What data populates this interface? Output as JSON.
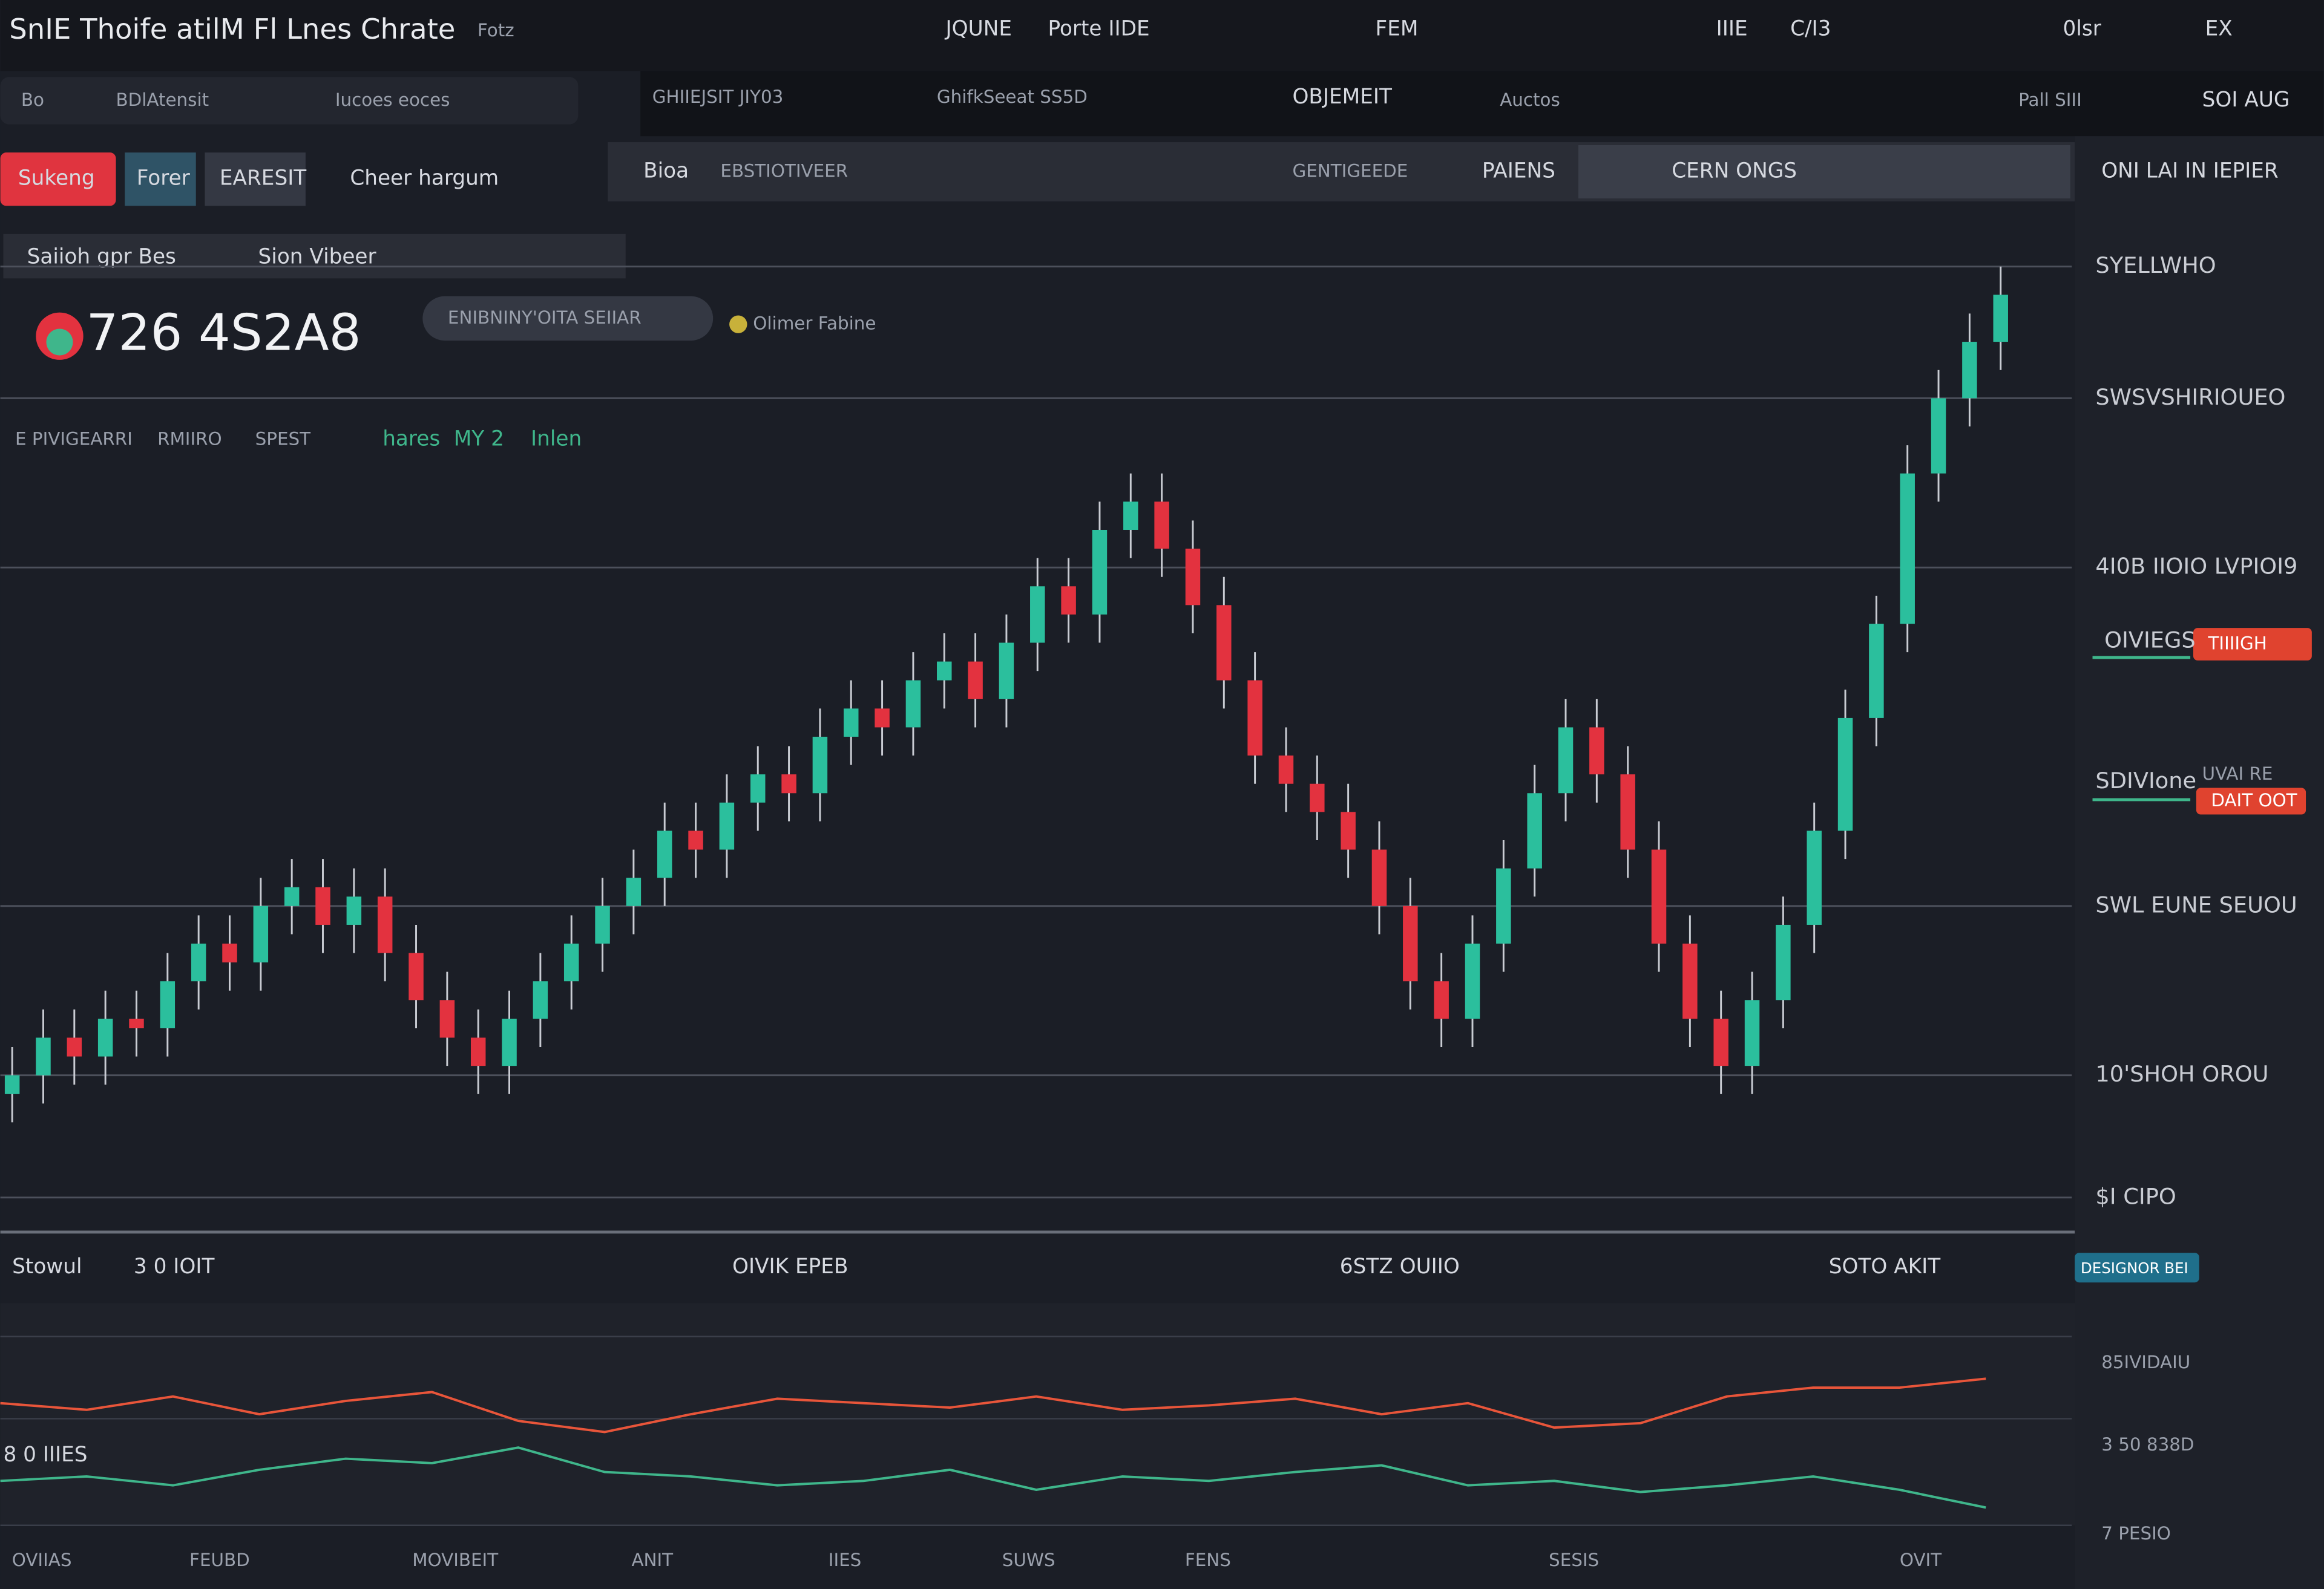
{
  "header": {
    "title": "SnIE Thoife atilM Fl Lnes Chrate",
    "title_suffix": "Fotz",
    "menu": [
      "JQUNE",
      "Porte IIDE",
      "FEM",
      "IIIE",
      "C/I3",
      "0lsr",
      "EX"
    ]
  },
  "toolbar": {
    "items": [
      "Bo",
      "BDlAtensit",
      "Iucoes eoces",
      "GHIIEJSIT JIY03",
      "GhifkSeeat SS5D",
      "OBJEMEIT",
      "Auctos",
      "Pall SIII",
      "SOI AUG"
    ]
  },
  "tabs": [
    "Sukeng",
    "Forer",
    "EARESIT",
    "Cheer hargum"
  ],
  "subtabs": [
    "Saiioh gpr Bes",
    "Sion Vibeer",
    "Bioa",
    "EBSTIOTIVEER",
    "GENTIGEEDE",
    "PAIENS",
    "CERN ONGS",
    "ONI LAI IN IEPIER"
  ],
  "quote": {
    "price": "726 4S2A8",
    "pill": "ENIBNINY'OITA SEIIAR",
    "status": "Olimer Fabine"
  },
  "legend": [
    "E PIVIGEARRI",
    "RMIIRO",
    "SPEST",
    "hares",
    "MY 2",
    "Inlen"
  ],
  "tags": [
    "OIVIEGS",
    "TIIIIGH",
    "SDIVIone",
    "UVAI RE",
    "DAIT OOT"
  ],
  "chart_data": {
    "type": "candlestick",
    "up_color": "#2bbf9d",
    "down_color": "#e3323f",
    "open": [
      12,
      14,
      18,
      16,
      20,
      19,
      24,
      28,
      26,
      32,
      34,
      30,
      33,
      27,
      22,
      18,
      15,
      20,
      24,
      28,
      32,
      35,
      40,
      38,
      43,
      46,
      44,
      50,
      53,
      51,
      56,
      58,
      54,
      60,
      66,
      63,
      72,
      75,
      70,
      64,
      56,
      48,
      45,
      42,
      38,
      32,
      24,
      20,
      28,
      36,
      44,
      51,
      46,
      38,
      28,
      20,
      15,
      22,
      30,
      40,
      52,
      62,
      78,
      86,
      92
    ],
    "high": [
      17,
      21,
      21,
      23,
      23,
      27,
      31,
      31,
      35,
      37,
      37,
      36,
      36,
      30,
      25,
      21,
      23,
      27,
      31,
      35,
      38,
      43,
      43,
      46,
      49,
      49,
      53,
      56,
      56,
      59,
      61,
      61,
      63,
      69,
      69,
      75,
      78,
      78,
      73,
      67,
      59,
      51,
      48,
      45,
      41,
      35,
      27,
      31,
      39,
      47,
      54,
      54,
      49,
      41,
      31,
      23,
      25,
      33,
      43,
      55,
      65,
      81,
      89,
      95,
      100
    ],
    "low": [
      9,
      11,
      13,
      13,
      16,
      16,
      21,
      23,
      23,
      29,
      27,
      27,
      24,
      19,
      15,
      12,
      12,
      17,
      21,
      25,
      29,
      32,
      35,
      35,
      40,
      41,
      41,
      47,
      48,
      48,
      53,
      51,
      51,
      57,
      60,
      60,
      69,
      67,
      61,
      53,
      45,
      42,
      39,
      35,
      29,
      21,
      17,
      17,
      25,
      33,
      41,
      43,
      35,
      25,
      17,
      12,
      12,
      19,
      27,
      37,
      49,
      59,
      75,
      83,
      89
    ],
    "close": [
      14,
      18,
      16,
      20,
      19,
      24,
      28,
      26,
      32,
      34,
      30,
      33,
      27,
      22,
      18,
      15,
      20,
      24,
      28,
      32,
      35,
      40,
      38,
      43,
      46,
      44,
      50,
      53,
      51,
      56,
      58,
      54,
      60,
      66,
      63,
      72,
      75,
      70,
      64,
      56,
      48,
      45,
      42,
      38,
      32,
      24,
      20,
      28,
      36,
      44,
      51,
      46,
      38,
      28,
      20,
      15,
      22,
      30,
      40,
      52,
      62,
      78,
      86,
      92,
      97
    ],
    "ylim": [
      0,
      100
    ],
    "yticks": [
      {
        "value": 100,
        "label": "SYELLWHO"
      },
      {
        "value": 86,
        "label": "SWSVSHIRIOUEO"
      },
      {
        "value": 68,
        "label": "4I0B IIOIO LVPIOI9"
      },
      {
        "value": 32,
        "label": "SWL EUNE SEUOU"
      },
      {
        "value": 14,
        "label": "10'SHOH OROU"
      },
      {
        "value": 1,
        "label": "$I CIPO"
      }
    ],
    "grid": true
  },
  "indicator": {
    "type": "line",
    "labels": [
      "Stowul",
      "3 0 IOIT",
      "OIVIK EPEB",
      "6STZ OUIIO",
      "SOTO AKIT",
      "8 0 IIIES"
    ],
    "button": "DESIGNOR BEI",
    "ylim": [
      0,
      100
    ],
    "yticks": [
      {
        "value": 85,
        "label": "85IVIDAIU"
      },
      {
        "value": 48,
        "label": "3 50 838D"
      },
      {
        "value": 0,
        "label": "7 PESIO"
      }
    ],
    "series": [
      {
        "color": "#e8553a",
        "values": [
          55,
          52,
          58,
          50,
          56,
          60,
          47,
          42,
          50,
          57,
          55,
          53,
          58,
          52,
          54,
          57,
          50,
          55,
          44,
          46,
          58,
          62,
          62,
          66
        ]
      },
      {
        "color": "#3fb68b",
        "values": [
          20,
          22,
          18,
          25,
          30,
          28,
          35,
          24,
          22,
          18,
          20,
          25,
          16,
          22,
          20,
          24,
          27,
          18,
          20,
          15,
          18,
          22,
          16,
          8
        ]
      }
    ]
  },
  "x_labels": [
    "OVIIAS",
    "FEUBD",
    "MOVIBEIT",
    "ANIT",
    "IIES",
    "SUWS",
    "FENS",
    "SESIS",
    "OVIT"
  ]
}
